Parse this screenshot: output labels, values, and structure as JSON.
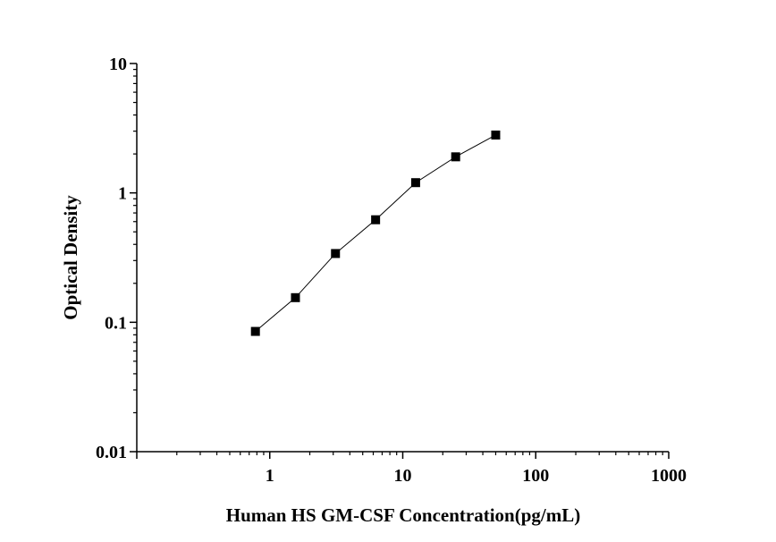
{
  "chart_data": {
    "type": "scatter",
    "title": "",
    "xlabel": "Human HS GM-CSF Concentration(pg/mL)",
    "ylabel": "Optical Density",
    "x_scale": "log",
    "y_scale": "log",
    "xlim": [
      0.1,
      1000
    ],
    "ylim": [
      0.01,
      10
    ],
    "x_ticks": [
      {
        "value": 1,
        "label": "1"
      },
      {
        "value": 10,
        "label": "10"
      },
      {
        "value": 100,
        "label": "100"
      },
      {
        "value": 1000,
        "label": "1000"
      }
    ],
    "y_ticks": [
      {
        "value": 0.01,
        "label": "0.01"
      },
      {
        "value": 0.1,
        "label": "0.1"
      },
      {
        "value": 1,
        "label": "1"
      },
      {
        "value": 10,
        "label": "10"
      }
    ],
    "grid": false,
    "legend": "none",
    "series": [
      {
        "marker": "square",
        "connected": true,
        "color": "#000000",
        "x": [
          0.78,
          1.56,
          3.12,
          6.25,
          12.5,
          25,
          50
        ],
        "y": [
          0.085,
          0.155,
          0.34,
          0.62,
          1.2,
          1.9,
          2.8
        ]
      }
    ]
  }
}
